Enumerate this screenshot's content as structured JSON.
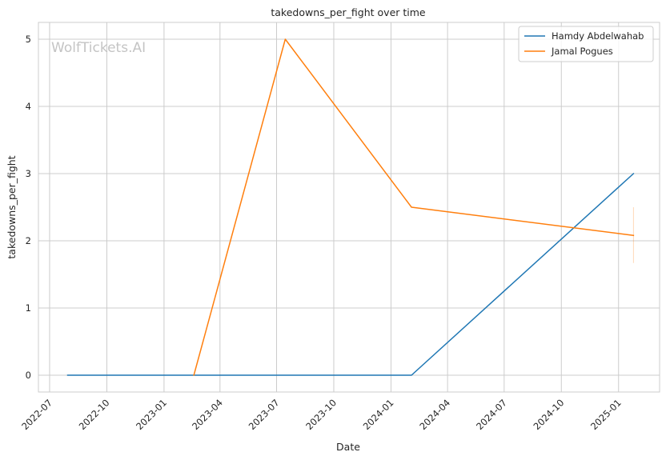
{
  "chart_data": {
    "type": "line",
    "title": "takedowns_per_fight over time",
    "xlabel": "Date",
    "ylabel": "takedowns_per_fight",
    "watermark": "WolfTickets.AI",
    "x_ticks": [
      "2022-07",
      "2022-10",
      "2023-01",
      "2023-04",
      "2023-07",
      "2023-10",
      "2024-01",
      "2024-04",
      "2024-07",
      "2024-10",
      "2025-01"
    ],
    "y_ticks": [
      0,
      1,
      2,
      3,
      4,
      5
    ],
    "xlim": [
      "2022-06-13",
      "2025-03-08"
    ],
    "ylim": [
      -0.25,
      5.25
    ],
    "grid": true,
    "legend_position": "top-right",
    "series": [
      {
        "name": "Hamdy Abdelwahab",
        "color": "#1f77b4",
        "points": [
          {
            "x": "2022-07-30",
            "y": 0
          },
          {
            "x": "2024-02-03",
            "y": 0
          },
          {
            "x": "2025-01-25",
            "y": 3
          }
        ]
      },
      {
        "name": "Jamal Pogues",
        "color": "#ff7f0e",
        "points": [
          {
            "x": "2023-02-18",
            "y": 0
          },
          {
            "x": "2023-07-15",
            "y": 5
          },
          {
            "x": "2024-02-03",
            "y": 2.5
          },
          {
            "x": "2025-01-25",
            "y": 2.08
          }
        ]
      }
    ],
    "error_band": {
      "series": "Jamal Pogues",
      "x": "2025-01-25",
      "y_low": 1.67,
      "y_high": 2.5
    }
  }
}
